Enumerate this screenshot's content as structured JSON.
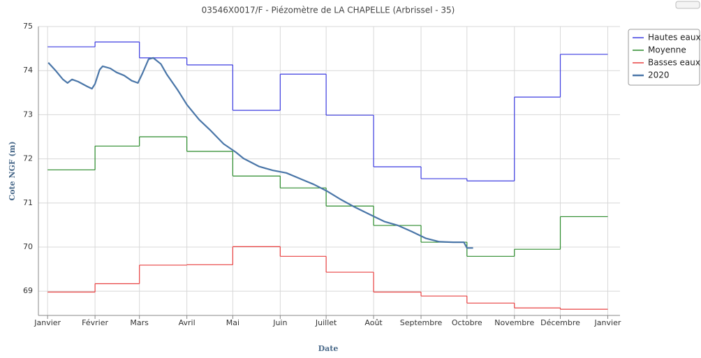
{
  "chart_data": {
    "type": "step-line",
    "title": "03546X0017/F - Piézomètre de LA CHAPELLE (Arbrissel - 35)",
    "x_label": "Date",
    "y_label": "Cote NGF (m)",
    "xlim": [
      -6,
      374
    ],
    "ylim": [
      68.45,
      75
    ],
    "xticks": [
      {
        "value": 0,
        "label": "Janvier"
      },
      {
        "value": 31,
        "label": "Février"
      },
      {
        "value": 60,
        "label": "Mars"
      },
      {
        "value": 91,
        "label": "Avril"
      },
      {
        "value": 121,
        "label": "Mai"
      },
      {
        "value": 152,
        "label": "Juin"
      },
      {
        "value": 182,
        "label": "Juillet"
      },
      {
        "value": 213,
        "label": "Août"
      },
      {
        "value": 244,
        "label": "Septembre"
      },
      {
        "value": 274,
        "label": "Octobre"
      },
      {
        "value": 305,
        "label": "Novembre"
      },
      {
        "value": 335,
        "label": "Décembre"
      },
      {
        "value": 366,
        "label": "Janvier"
      }
    ],
    "yticks": [
      69,
      70,
      71,
      72,
      73,
      74,
      75
    ],
    "grid": true,
    "legend": "right",
    "series": [
      {
        "name": "Hautes eaux",
        "color": "#3b3be0",
        "step": true,
        "values": [
          74.54,
          74.65,
          74.29,
          74.13,
          73.1,
          73.92,
          72.99,
          71.82,
          71.55,
          71.5,
          73.4,
          74.37
        ]
      },
      {
        "name": "Moyenne",
        "color": "#2a8a2a",
        "step": true,
        "values": [
          71.75,
          72.29,
          72.5,
          72.17,
          71.61,
          71.34,
          70.93,
          70.49,
          70.11,
          69.79,
          69.95,
          70.69
        ]
      },
      {
        "name": "Basses eaux",
        "color": "#e84040",
        "step": true,
        "values": [
          68.98,
          69.17,
          69.59,
          69.6,
          70.01,
          69.79,
          69.43,
          68.98,
          68.89,
          68.73,
          68.62,
          68.59
        ]
      },
      {
        "name": "2020",
        "color": "#4a76a8",
        "step": false,
        "x": [
          0.5,
          5.5,
          10,
          13,
          16,
          20,
          26,
          29,
          31,
          34,
          36,
          41,
          45,
          50,
          55,
          59,
          62,
          66,
          69,
          74,
          78,
          85,
          91,
          99,
          106,
          115,
          123,
          128,
          138,
          147,
          156,
          165,
          174,
          183,
          192,
          201,
          211,
          220,
          229,
          238,
          247,
          256,
          265,
          272,
          274,
          278
        ],
        "values": [
          74.18,
          73.99,
          73.8,
          73.72,
          73.8,
          73.75,
          73.64,
          73.59,
          73.7,
          74.02,
          74.1,
          74.05,
          73.96,
          73.89,
          73.77,
          73.72,
          73.94,
          74.26,
          74.29,
          74.15,
          73.91,
          73.56,
          73.23,
          72.89,
          72.66,
          72.34,
          72.15,
          72.01,
          71.83,
          71.74,
          71.68,
          71.55,
          71.42,
          71.26,
          71.07,
          70.9,
          70.73,
          70.58,
          70.49,
          70.35,
          70.2,
          70.12,
          70.11,
          70.11,
          69.98,
          69.98
        ]
      }
    ]
  }
}
